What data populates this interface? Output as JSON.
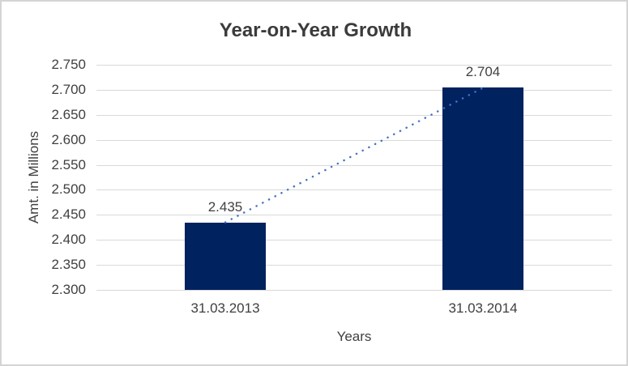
{
  "chart_data": {
    "type": "bar",
    "title": "Year-on-Year Growth",
    "xlabel": "Years",
    "ylabel": "Amt. in Millions",
    "categories": [
      "31.03.2013",
      "31.03.2014"
    ],
    "values": [
      2.435,
      2.704
    ],
    "data_labels": [
      "2.435",
      "2.704"
    ],
    "ylim": [
      2.3,
      2.75
    ],
    "ytick_step": 0.05,
    "yticks": [
      "2.750",
      "2.700",
      "2.650",
      "2.600",
      "2.550",
      "2.500",
      "2.450",
      "2.400",
      "2.350",
      "2.300"
    ],
    "grid": true,
    "legend": "none",
    "bar_color": "#00225f",
    "trendline": {
      "style": "dotted",
      "color": "#4472c4"
    },
    "gridline_color": "#d9d9d9",
    "text_color": "#404040",
    "title_color": "#3b3b3b",
    "background_color": "#ffffff",
    "border_color": "#d4d4d4"
  }
}
